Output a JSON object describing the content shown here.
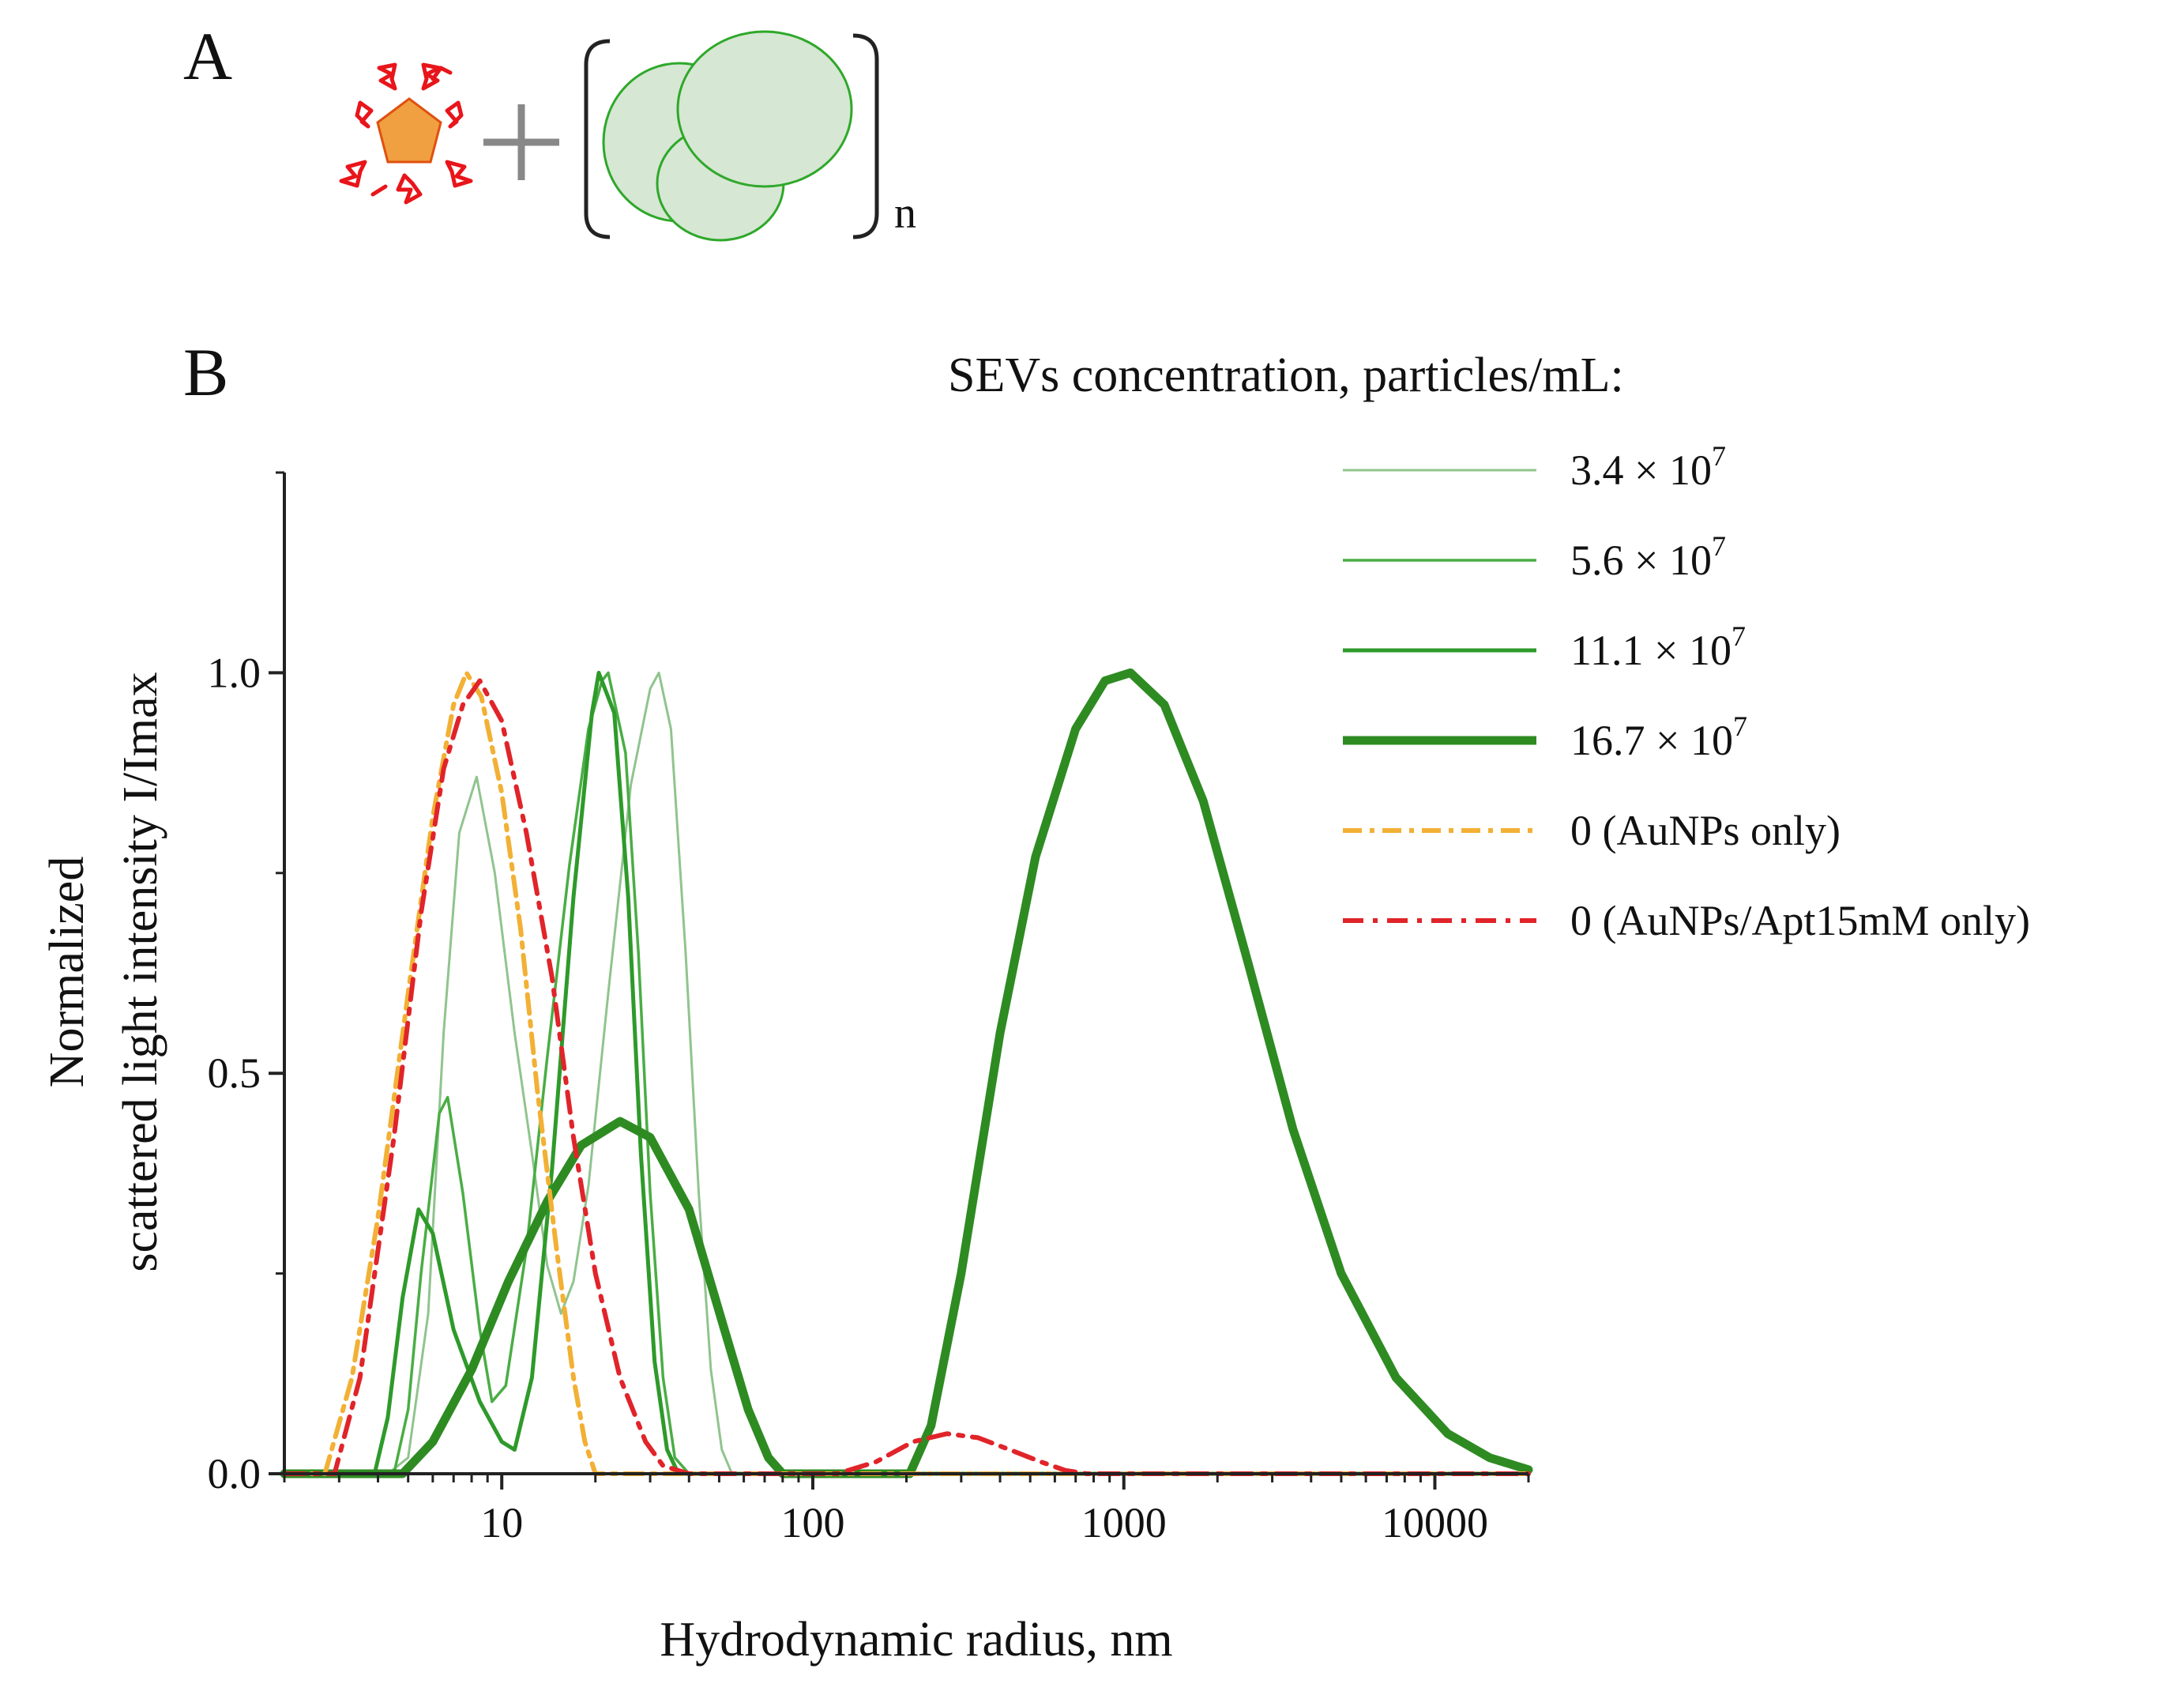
{
  "panels": {
    "a": "A",
    "b": "B",
    "subscript_n": "n"
  },
  "chart_data": {
    "type": "line",
    "xscale": "log",
    "xlim": [
      2,
      20000
    ],
    "ylim": [
      0,
      1.25
    ],
    "xticks": [
      10,
      100,
      1000,
      10000
    ],
    "xtick_labels": [
      "10",
      "100",
      "1000",
      "10000"
    ],
    "yticks": [
      0,
      0.5,
      1.0
    ],
    "ytick_labels": [
      "0.0",
      "0.5",
      "1.0"
    ],
    "xlabel": "Hydrodynamic radius, nm",
    "ylabel_line1": "Normalized",
    "ylabel_line2": "scattered light intensity I/Imax",
    "legend_title": "SEVs concentration, particles/mL:",
    "legend_position": "top-right",
    "series": [
      {
        "name": "3.4 × 10^7",
        "mantissa": "3.4",
        "times": "×",
        "base": "10",
        "exp": "7",
        "color": "#90c48e",
        "width": 3,
        "dash": "",
        "points": [
          [
            2,
            0
          ],
          [
            4.3,
            0
          ],
          [
            5,
            0.02
          ],
          [
            5.8,
            0.2
          ],
          [
            6.5,
            0.55
          ],
          [
            7.3,
            0.8
          ],
          [
            8.3,
            0.87
          ],
          [
            9.5,
            0.75
          ],
          [
            11,
            0.55
          ],
          [
            12.5,
            0.4
          ],
          [
            14,
            0.26
          ],
          [
            15.5,
            0.2
          ],
          [
            17,
            0.24
          ],
          [
            19,
            0.36
          ],
          [
            22,
            0.6
          ],
          [
            26,
            0.86
          ],
          [
            30,
            0.98
          ],
          [
            32,
            1.0
          ],
          [
            35,
            0.93
          ],
          [
            39,
            0.65
          ],
          [
            43,
            0.35
          ],
          [
            47,
            0.13
          ],
          [
            51,
            0.03
          ],
          [
            55,
            0
          ],
          [
            20000,
            0
          ]
        ]
      },
      {
        "name": "5.6 × 10^7",
        "mantissa": "5.6",
        "times": "×",
        "base": "10",
        "exp": "7",
        "color": "#4aad44",
        "width": 3.5,
        "dash": "",
        "points": [
          [
            2,
            0
          ],
          [
            4.5,
            0
          ],
          [
            5,
            0.08
          ],
          [
            5.5,
            0.25
          ],
          [
            6.3,
            0.45
          ],
          [
            6.7,
            0.47
          ],
          [
            7.5,
            0.35
          ],
          [
            8.5,
            0.18
          ],
          [
            9.3,
            0.09
          ],
          [
            10.3,
            0.11
          ],
          [
            12,
            0.28
          ],
          [
            14,
            0.52
          ],
          [
            16.5,
            0.76
          ],
          [
            19,
            0.93
          ],
          [
            21,
            0.99
          ],
          [
            22,
            1.0
          ],
          [
            25,
            0.9
          ],
          [
            27.5,
            0.65
          ],
          [
            30,
            0.35
          ],
          [
            33,
            0.12
          ],
          [
            36,
            0.02
          ],
          [
            40,
            0
          ],
          [
            20000,
            0
          ]
        ]
      },
      {
        "name": "11.1 × 10^7",
        "mantissa": "11.1",
        "times": "×",
        "base": "10",
        "exp": "7",
        "color": "#2e9a2a",
        "width": 5,
        "dash": "",
        "points": [
          [
            2,
            0
          ],
          [
            3.9,
            0
          ],
          [
            4.3,
            0.07
          ],
          [
            4.8,
            0.22
          ],
          [
            5.4,
            0.33
          ],
          [
            6,
            0.3
          ],
          [
            7,
            0.18
          ],
          [
            8.5,
            0.09
          ],
          [
            10,
            0.04
          ],
          [
            11,
            0.03
          ],
          [
            12.5,
            0.12
          ],
          [
            14.5,
            0.38
          ],
          [
            17,
            0.72
          ],
          [
            19.5,
            0.95
          ],
          [
            20.5,
            1.0
          ],
          [
            23,
            0.95
          ],
          [
            25.5,
            0.72
          ],
          [
            28,
            0.4
          ],
          [
            31,
            0.14
          ],
          [
            34,
            0.03
          ],
          [
            37,
            0
          ],
          [
            20000,
            0
          ]
        ]
      },
      {
        "name": "16.7 × 10^7",
        "mantissa": "16.7",
        "times": "×",
        "base": "10",
        "exp": "7",
        "color": "#2e8b22",
        "width": 11,
        "dash": "",
        "points": [
          [
            2,
            0
          ],
          [
            4.8,
            0
          ],
          [
            6,
            0.04
          ],
          [
            8,
            0.13
          ],
          [
            10.5,
            0.24
          ],
          [
            14,
            0.34
          ],
          [
            18,
            0.41
          ],
          [
            24,
            0.44
          ],
          [
            30,
            0.42
          ],
          [
            40,
            0.33
          ],
          [
            52,
            0.18
          ],
          [
            62,
            0.08
          ],
          [
            72,
            0.02
          ],
          [
            80,
            0
          ],
          [
            205,
            0
          ],
          [
            240,
            0.06
          ],
          [
            300,
            0.25
          ],
          [
            400,
            0.55
          ],
          [
            520,
            0.77
          ],
          [
            700,
            0.93
          ],
          [
            870,
            0.99
          ],
          [
            1050,
            1.0
          ],
          [
            1350,
            0.96
          ],
          [
            1800,
            0.84
          ],
          [
            2500,
            0.64
          ],
          [
            3500,
            0.43
          ],
          [
            5000,
            0.25
          ],
          [
            7500,
            0.12
          ],
          [
            11000,
            0.05
          ],
          [
            15000,
            0.02
          ],
          [
            20000,
            0.005
          ]
        ]
      },
      {
        "name": "0 (AuNPs  only)",
        "color": "#f2b035",
        "width": 6,
        "dash": "24 10 6 10",
        "points": [
          [
            2,
            0
          ],
          [
            2.7,
            0
          ],
          [
            3.3,
            0.12
          ],
          [
            4,
            0.32
          ],
          [
            5,
            0.6
          ],
          [
            6,
            0.82
          ],
          [
            7,
            0.96
          ],
          [
            7.7,
            1.0
          ],
          [
            8.6,
            0.97
          ],
          [
            10,
            0.85
          ],
          [
            11.5,
            0.68
          ],
          [
            13,
            0.48
          ],
          [
            15,
            0.28
          ],
          [
            17,
            0.12
          ],
          [
            18.5,
            0.04
          ],
          [
            20,
            0
          ],
          [
            20000,
            0
          ]
        ]
      },
      {
        "name": "0 (AuNPs/Apt15mM  only)",
        "color": "#e0242a",
        "width": 6,
        "dash": "26 12 6 12",
        "points": [
          [
            2,
            0
          ],
          [
            2.9,
            0
          ],
          [
            3.5,
            0.12
          ],
          [
            4.5,
            0.42
          ],
          [
            5.5,
            0.7
          ],
          [
            6.5,
            0.88
          ],
          [
            7.5,
            0.96
          ],
          [
            8.5,
            0.99
          ],
          [
            10,
            0.94
          ],
          [
            12,
            0.8
          ],
          [
            14.5,
            0.62
          ],
          [
            17,
            0.42
          ],
          [
            20,
            0.25
          ],
          [
            24,
            0.12
          ],
          [
            29,
            0.04
          ],
          [
            33,
            0.01
          ],
          [
            40,
            0
          ],
          [
            120,
            0
          ],
          [
            160,
            0.015
          ],
          [
            210,
            0.04
          ],
          [
            270,
            0.05
          ],
          [
            340,
            0.045
          ],
          [
            430,
            0.03
          ],
          [
            540,
            0.015
          ],
          [
            650,
            0.004
          ],
          [
            760,
            0
          ],
          [
            20000,
            0
          ]
        ]
      }
    ]
  }
}
